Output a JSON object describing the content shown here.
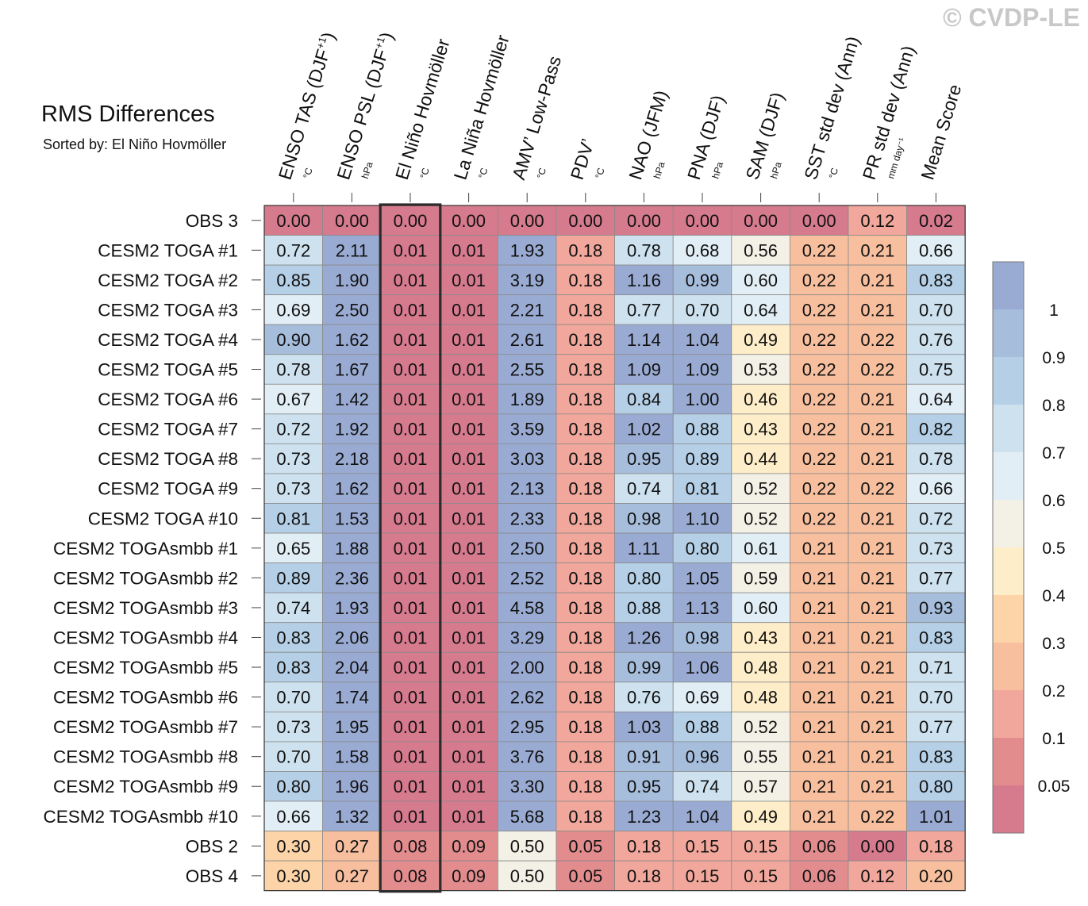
{
  "header": {
    "title": "RMS Differences",
    "subtitle": "Sorted by: El Niño Hovmöller",
    "watermark": "© CVDP-LE"
  },
  "chart_data": {
    "type": "heatmap",
    "title": "RMS Differences",
    "subtitle": "Sorted by: El Niño Hovmöller",
    "highlighted_column": "El Niño Hovmöller",
    "columns": [
      {
        "label": "ENSO TAS (DJF",
        "sup": "+1",
        "close": ")",
        "unit": "°C"
      },
      {
        "label": "ENSO PSL (DJF",
        "sup": "+1",
        "close": ")",
        "unit": "hPa"
      },
      {
        "label": "El Niño Hovmöller",
        "sup": "",
        "close": "",
        "unit": "°C"
      },
      {
        "label": "La Niña Hovmöller",
        "sup": "",
        "close": "",
        "unit": "°C"
      },
      {
        "label": "AMV’ Low-Pass",
        "sup": "",
        "close": "",
        "unit": "°C"
      },
      {
        "label": "PDV’",
        "sup": "",
        "close": "",
        "unit": "°C"
      },
      {
        "label": "NAO (JFM)",
        "sup": "",
        "close": "",
        "unit": "hPa"
      },
      {
        "label": "PNA (DJF)",
        "sup": "",
        "close": "",
        "unit": "hPa"
      },
      {
        "label": "SAM (DJF)",
        "sup": "",
        "close": "",
        "unit": "hPa"
      },
      {
        "label": "SST std dev (Ann)",
        "sup": "",
        "close": "",
        "unit": "°C"
      },
      {
        "label": "PR std dev (Ann)",
        "sup": "",
        "close": "",
        "unit": "mm day⁻¹"
      },
      {
        "label": "Mean Score",
        "sup": "",
        "close": "",
        "unit": ""
      }
    ],
    "rows": [
      "OBS 3",
      "CESM2 TOGA #1",
      "CESM2 TOGA #2",
      "CESM2 TOGA #3",
      "CESM2 TOGA #4",
      "CESM2 TOGA #5",
      "CESM2 TOGA #6",
      "CESM2 TOGA #7",
      "CESM2 TOGA #8",
      "CESM2 TOGA #9",
      "CESM2 TOGA #10",
      "CESM2 TOGAsmbb #1",
      "CESM2 TOGAsmbb #2",
      "CESM2 TOGAsmbb #3",
      "CESM2 TOGAsmbb #4",
      "CESM2 TOGAsmbb #5",
      "CESM2 TOGAsmbb #6",
      "CESM2 TOGAsmbb #7",
      "CESM2 TOGAsmbb #8",
      "CESM2 TOGAsmbb #9",
      "CESM2 TOGAsmbb #10",
      "OBS 2",
      "OBS 4"
    ],
    "values": [
      [
        "0.00",
        "0.00",
        "0.00",
        "0.00",
        "0.00",
        "0.00",
        "0.00",
        "0.00",
        "0.00",
        "0.00",
        "0.12",
        "0.02"
      ],
      [
        "0.72",
        "2.11",
        "0.01",
        "0.01",
        "1.93",
        "0.18",
        "0.78",
        "0.68",
        "0.56",
        "0.22",
        "0.21",
        "0.66"
      ],
      [
        "0.85",
        "1.90",
        "0.01",
        "0.01",
        "3.19",
        "0.18",
        "1.16",
        "0.99",
        "0.60",
        "0.22",
        "0.21",
        "0.83"
      ],
      [
        "0.69",
        "2.50",
        "0.01",
        "0.01",
        "2.21",
        "0.18",
        "0.77",
        "0.70",
        "0.64",
        "0.22",
        "0.21",
        "0.70"
      ],
      [
        "0.90",
        "1.62",
        "0.01",
        "0.01",
        "2.61",
        "0.18",
        "1.14",
        "1.04",
        "0.49",
        "0.22",
        "0.22",
        "0.76"
      ],
      [
        "0.78",
        "1.67",
        "0.01",
        "0.01",
        "2.55",
        "0.18",
        "1.09",
        "1.09",
        "0.53",
        "0.22",
        "0.22",
        "0.75"
      ],
      [
        "0.67",
        "1.42",
        "0.01",
        "0.01",
        "1.89",
        "0.18",
        "0.84",
        "1.00",
        "0.46",
        "0.22",
        "0.21",
        "0.64"
      ],
      [
        "0.72",
        "1.92",
        "0.01",
        "0.01",
        "3.59",
        "0.18",
        "1.02",
        "0.88",
        "0.43",
        "0.22",
        "0.21",
        "0.82"
      ],
      [
        "0.73",
        "2.18",
        "0.01",
        "0.01",
        "3.03",
        "0.18",
        "0.95",
        "0.89",
        "0.44",
        "0.22",
        "0.21",
        "0.78"
      ],
      [
        "0.73",
        "1.62",
        "0.01",
        "0.01",
        "2.13",
        "0.18",
        "0.74",
        "0.81",
        "0.52",
        "0.22",
        "0.22",
        "0.66"
      ],
      [
        "0.81",
        "1.53",
        "0.01",
        "0.01",
        "2.33",
        "0.18",
        "0.98",
        "1.10",
        "0.52",
        "0.22",
        "0.21",
        "0.72"
      ],
      [
        "0.65",
        "1.88",
        "0.01",
        "0.01",
        "2.50",
        "0.18",
        "1.11",
        "0.80",
        "0.61",
        "0.21",
        "0.21",
        "0.73"
      ],
      [
        "0.89",
        "2.36",
        "0.01",
        "0.01",
        "2.52",
        "0.18",
        "0.80",
        "1.05",
        "0.59",
        "0.21",
        "0.21",
        "0.77"
      ],
      [
        "0.74",
        "1.93",
        "0.01",
        "0.01",
        "4.58",
        "0.18",
        "0.88",
        "1.13",
        "0.60",
        "0.21",
        "0.21",
        "0.93"
      ],
      [
        "0.83",
        "2.06",
        "0.01",
        "0.01",
        "3.29",
        "0.18",
        "1.26",
        "0.98",
        "0.43",
        "0.21",
        "0.21",
        "0.83"
      ],
      [
        "0.83",
        "2.04",
        "0.01",
        "0.01",
        "2.00",
        "0.18",
        "0.99",
        "1.06",
        "0.48",
        "0.21",
        "0.21",
        "0.71"
      ],
      [
        "0.70",
        "1.74",
        "0.01",
        "0.01",
        "2.62",
        "0.18",
        "0.76",
        "0.69",
        "0.48",
        "0.21",
        "0.21",
        "0.70"
      ],
      [
        "0.73",
        "1.95",
        "0.01",
        "0.01",
        "2.95",
        "0.18",
        "1.03",
        "0.88",
        "0.52",
        "0.21",
        "0.21",
        "0.77"
      ],
      [
        "0.70",
        "1.58",
        "0.01",
        "0.01",
        "3.76",
        "0.18",
        "0.91",
        "0.96",
        "0.55",
        "0.21",
        "0.21",
        "0.83"
      ],
      [
        "0.80",
        "1.96",
        "0.01",
        "0.01",
        "3.30",
        "0.18",
        "0.95",
        "0.74",
        "0.57",
        "0.21",
        "0.21",
        "0.80"
      ],
      [
        "0.66",
        "1.32",
        "0.01",
        "0.01",
        "5.68",
        "0.18",
        "1.23",
        "1.04",
        "0.49",
        "0.21",
        "0.22",
        "1.01"
      ],
      [
        "0.30",
        "0.27",
        "0.08",
        "0.09",
        "0.50",
        "0.05",
        "0.18",
        "0.15",
        "0.15",
        "0.06",
        "0.00",
        "0.18"
      ],
      [
        "0.30",
        "0.27",
        "0.08",
        "0.09",
        "0.50",
        "0.05",
        "0.18",
        "0.15",
        "0.15",
        "0.06",
        "0.12",
        "0.20"
      ]
    ],
    "colorbar": {
      "levels": [
        0.05,
        0.1,
        0.2,
        0.3,
        0.4,
        0.5,
        0.6,
        0.7,
        0.8,
        0.9,
        1
      ],
      "labels": [
        "0.05",
        "0.1",
        "0.2",
        "0.3",
        "0.4",
        "0.5",
        "0.6",
        "0.7",
        "0.8",
        "0.9",
        "1"
      ],
      "colors": [
        "#d67a8e",
        "#e28c8e",
        "#f1a79b",
        "#f8bf9f",
        "#fdd4a8",
        "#fdedc8",
        "#f3f1e6",
        "#e2eef5",
        "#cde1ef",
        "#b4cfe6",
        "#a6bddc",
        "#9aabd3"
      ]
    }
  }
}
